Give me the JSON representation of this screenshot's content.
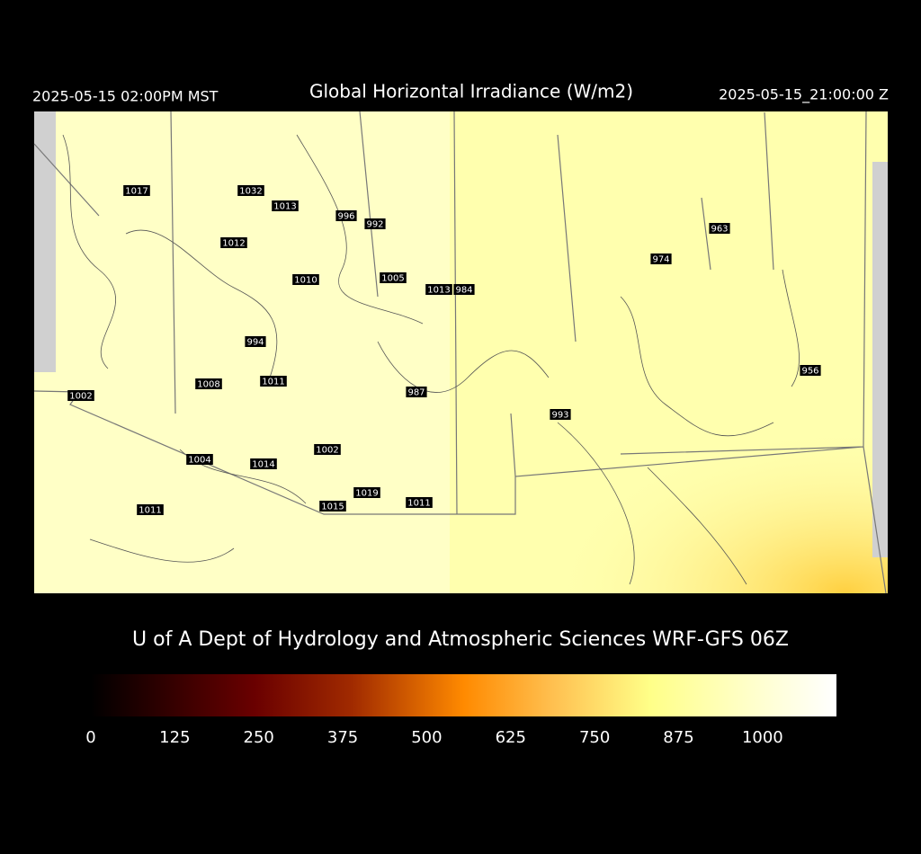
{
  "header": {
    "left": "2025-05-15 02:00PM MST",
    "title": "Global Horizontal Irradiance (W/m2)",
    "right": "2025-05-15_21:00:00 Z"
  },
  "map": {
    "labels": [
      1017,
      1032,
      1013,
      996,
      992,
      1012,
      963,
      974,
      1005,
      1010,
      1013,
      984,
      994,
      956,
      1011,
      1008,
      987,
      1002,
      993,
      1002,
      1004,
      1014,
      1019,
      1011,
      1015,
      1011
    ]
  },
  "credit": "U of A Dept of Hydrology and Atmospheric Sciences WRF-GFS 06Z",
  "colorbar": {
    "range": [
      0,
      1110
    ],
    "ticks": [
      0,
      125,
      250,
      375,
      500,
      625,
      750,
      875,
      1000
    ]
  }
}
